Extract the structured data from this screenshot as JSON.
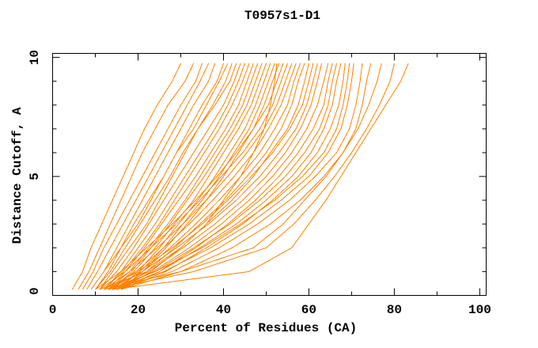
{
  "page": {
    "title": "T0957s1-D1"
  },
  "chart_data": {
    "type": "line",
    "title": "T0957s1-D1",
    "xlabel": "Percent of Residues (CA)",
    "ylabel": "Distance Cutoff, A",
    "xlim": [
      0,
      101.5
    ],
    "ylim": [
      0,
      10.17
    ],
    "x_major_ticks": [
      0,
      20,
      40,
      60,
      80,
      100
    ],
    "x_minor_ticks": [
      10,
      30,
      50,
      70,
      90
    ],
    "y_major_ticks": [
      0,
      5,
      10
    ],
    "y_minor_ticks": [
      1,
      2,
      3,
      4,
      6,
      7,
      8,
      9
    ],
    "grid": false,
    "legend": "none",
    "frame_color": "#000000",
    "series_color": "#ff8200",
    "description": "Approx. 42 model accuracy curves (distance cutoff vs percent of CA residues fitted), all drawn in orange, rising from x of 5-16 at the bottom to tops spread between x of 30 and 83 near y of 9.7",
    "y_levels": [
      0.25,
      1,
      2,
      3,
      4,
      5,
      6,
      7,
      8,
      9,
      9.75
    ],
    "curves_x": [
      [
        4.6,
        7,
        9,
        11.5,
        14,
        16.5,
        19,
        21.5,
        24.5,
        28,
        30
      ],
      [
        6,
        8.5,
        11,
        13.5,
        16,
        18.5,
        21,
        24,
        27,
        31,
        33
      ],
      [
        7,
        9.5,
        12,
        15,
        18,
        21,
        24,
        27,
        30,
        33.5,
        35
      ],
      [
        8,
        10.5,
        13.5,
        16.5,
        19.5,
        22.5,
        25.5,
        28.5,
        31.5,
        34.5,
        36.5
      ],
      [
        9,
        12,
        15,
        18,
        21,
        24,
        27,
        30,
        33,
        36.5,
        38
      ],
      [
        10,
        13,
        16,
        19,
        22.5,
        26,
        29,
        32,
        35,
        38.5,
        40
      ],
      [
        9,
        12,
        16,
        20,
        23,
        26,
        29,
        33,
        36,
        39,
        41
      ],
      [
        10,
        13.5,
        17,
        20.5,
        24,
        27.5,
        30.5,
        34,
        37.5,
        40.5,
        42
      ],
      [
        11,
        14,
        18,
        22,
        25,
        28,
        31,
        34,
        38,
        41.5,
        43
      ],
      [
        11,
        15,
        19,
        22.5,
        26,
        29.5,
        33,
        36.5,
        40,
        42.5,
        44
      ],
      [
        12,
        16,
        20,
        24,
        27.5,
        31,
        34.5,
        38,
        41,
        43.5,
        45
      ],
      [
        12,
        16.5,
        21,
        25,
        28.5,
        32,
        35.5,
        39,
        42,
        44.5,
        46
      ],
      [
        13,
        17,
        21.5,
        25.5,
        29.5,
        33.5,
        37,
        40.5,
        43.5,
        45.5,
        47
      ],
      [
        13,
        18,
        22.5,
        27,
        31,
        34.5,
        38,
        41.5,
        44.5,
        46.5,
        48
      ],
      [
        14,
        18.5,
        23,
        27.5,
        31.5,
        35.5,
        39,
        42.5,
        45.5,
        47.5,
        49
      ],
      [
        14,
        19,
        24,
        28.5,
        33,
        36.5,
        40,
        43.5,
        46.5,
        48.5,
        50
      ],
      [
        15,
        20,
        25,
        29.5,
        34,
        38,
        41.5,
        45,
        47.5,
        49.5,
        51
      ],
      [
        15,
        20.5,
        26,
        30.5,
        35,
        39,
        42.5,
        46,
        48.5,
        50.5,
        52
      ],
      [
        11,
        22,
        30,
        36,
        40,
        44,
        47,
        49.5,
        51,
        52,
        52.5
      ],
      [
        16,
        21,
        26.5,
        31.5,
        36,
        40,
        43.5,
        47,
        49.5,
        51.5,
        53
      ],
      [
        10,
        16,
        22,
        28,
        33.5,
        38.5,
        43,
        47,
        50.5,
        52.5,
        54
      ],
      [
        11,
        17,
        23,
        29,
        34.5,
        39.5,
        44.5,
        48.5,
        51.5,
        53.5,
        55
      ],
      [
        12,
        18,
        24.5,
        30.5,
        36,
        41,
        45.5,
        49.5,
        52.5,
        54.5,
        56
      ],
      [
        13,
        19.5,
        26,
        32,
        37.5,
        42.5,
        47,
        50.5,
        53.5,
        55.5,
        57
      ],
      [
        14,
        21,
        27.5,
        33.5,
        39,
        44,
        48.5,
        52,
        55,
        56.5,
        58
      ],
      [
        15,
        22,
        28.5,
        34.5,
        40.5,
        45.5,
        50,
        53.5,
        56,
        57.5,
        59
      ],
      [
        16,
        23,
        30,
        36,
        42,
        47,
        51,
        55,
        57.5,
        59,
        60
      ],
      [
        12,
        20,
        28,
        35,
        41,
        46.5,
        51.5,
        55.5,
        58.5,
        60,
        61
      ],
      [
        13,
        21,
        29,
        36.5,
        43,
        48.5,
        53,
        57,
        59.5,
        61,
        62
      ],
      [
        14,
        22.5,
        30.5,
        38,
        44.5,
        50,
        54.5,
        58,
        60.5,
        62,
        63
      ],
      [
        15,
        23.5,
        32,
        39.5,
        46,
        51.5,
        56,
        59.5,
        62,
        63.5,
        64.5
      ],
      [
        16,
        25,
        33.5,
        41,
        47.5,
        53,
        57.5,
        61,
        63.5,
        64.5,
        65.5
      ],
      [
        14,
        24,
        33,
        41.5,
        48.5,
        54.5,
        59,
        62.5,
        64.5,
        65.5,
        66.5
      ],
      [
        15,
        25,
        34.5,
        43,
        50,
        56,
        60.5,
        63.5,
        65.5,
        66.5,
        67.5
      ],
      [
        16,
        26.5,
        36,
        44.5,
        51.5,
        57.5,
        62,
        65,
        67,
        68,
        68.5
      ],
      [
        13,
        24,
        35,
        44,
        52,
        58.5,
        63.5,
        66.5,
        68,
        69,
        69.5
      ],
      [
        14,
        26,
        37,
        46,
        53.5,
        60,
        64.5,
        67.5,
        69,
        70,
        70.5
      ],
      [
        15,
        28,
        39,
        48,
        55.5,
        61.5,
        66.5,
        69.5,
        71,
        72,
        72.5
      ],
      [
        16,
        30,
        42,
        51,
        58,
        63.5,
        68,
        71,
        72.5,
        73.5,
        74.5
      ],
      [
        12,
        30,
        47,
        54,
        59,
        64,
        68,
        71.5,
        74,
        76,
        77
      ],
      [
        13,
        33,
        50,
        56.5,
        61.5,
        66,
        70,
        73.5,
        76.5,
        79,
        80
      ],
      [
        14,
        46,
        56,
        60,
        64,
        67.5,
        71,
        74.5,
        78,
        81.5,
        83.3
      ]
    ]
  }
}
